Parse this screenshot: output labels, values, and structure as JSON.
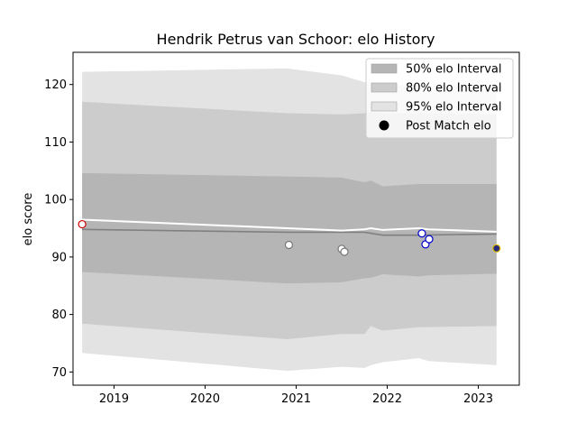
{
  "chart_data": {
    "type": "line",
    "title": "Hendrik Petrus van Schoor: elo History",
    "xlabel": "",
    "ylabel": "elo score",
    "xlim": [
      2018.55,
      2023.45
    ],
    "ylim": [
      67.7,
      125.6
    ],
    "x_ticks": [
      2019,
      2020,
      2021,
      2022,
      2023
    ],
    "y_ticks": [
      70,
      80,
      90,
      100,
      110,
      120
    ],
    "grid": false,
    "legend_position": "top-right",
    "band_x": [
      2018.65,
      2020.9,
      2021.5,
      2021.75,
      2021.82,
      2021.95,
      2022.35,
      2022.45,
      2023.2
    ],
    "bands": [
      {
        "name": "95% elo Interval",
        "color": "#e3e3e3",
        "upper": [
          122.2,
          122.8,
          121.6,
          120.4,
          120.2,
          120.0,
          119.8,
          119.8,
          119.6
        ],
        "lower": [
          73.3,
          70.2,
          70.9,
          70.7,
          71.2,
          71.7,
          72.4,
          71.9,
          71.2
        ]
      },
      {
        "name": "80% elo Interval",
        "color": "#cccccc",
        "upper": [
          117.0,
          115.0,
          114.8,
          115.0,
          115.2,
          115.0,
          115.0,
          115.0,
          114.8
        ],
        "lower": [
          78.4,
          75.7,
          76.6,
          76.6,
          78.0,
          77.2,
          77.8,
          77.8,
          78.0
        ]
      },
      {
        "name": "50% elo Interval",
        "color": "#b5b5b5",
        "upper": [
          104.6,
          104.0,
          103.8,
          103.0,
          103.3,
          102.3,
          102.7,
          102.7,
          102.7
        ],
        "lower": [
          87.4,
          85.4,
          85.6,
          86.3,
          86.4,
          87.0,
          86.6,
          86.8,
          87.1
        ]
      }
    ],
    "median_line": {
      "color": "#808080",
      "x": [
        2018.65,
        2020.9,
        2021.5,
        2021.75,
        2021.95,
        2022.35,
        2023.2
      ],
      "y": [
        94.8,
        94.3,
        94.3,
        94.3,
        93.8,
        93.8,
        94.0
      ]
    },
    "mean_line": {
      "color": "#ffffff",
      "x": [
        2018.65,
        2020.9,
        2021.5,
        2021.75,
        2021.82,
        2021.95,
        2022.35,
        2022.45,
        2023.2
      ],
      "y": [
        96.5,
        95.0,
        94.6,
        94.8,
        95.0,
        94.7,
        95.0,
        94.8,
        94.4
      ]
    },
    "points": [
      {
        "x": 2018.65,
        "y": 95.7,
        "fill": "#ffffff",
        "edge": "#cc0000"
      },
      {
        "x": 2020.92,
        "y": 92.1,
        "fill": "#ffffff",
        "edge": "#777777"
      },
      {
        "x": 2021.5,
        "y": 91.4,
        "fill": "#ffffff",
        "edge": "#777777"
      },
      {
        "x": 2021.53,
        "y": 90.9,
        "fill": "#ffffff",
        "edge": "#777777"
      },
      {
        "x": 2022.38,
        "y": 94.1,
        "fill": "#ffffff",
        "edge": "#0000cc"
      },
      {
        "x": 2022.42,
        "y": 92.2,
        "fill": "#ffffff",
        "edge": "#0000cc"
      },
      {
        "x": 2022.46,
        "y": 93.1,
        "fill": "#ffffff",
        "edge": "#0000cc"
      },
      {
        "x": 2023.2,
        "y": 91.5,
        "fill": "#2a2a7a",
        "edge": "#e0c000"
      }
    ],
    "legend": [
      {
        "label": "50% elo Interval",
        "type": "patch",
        "color": "#b5b5b5"
      },
      {
        "label": "80% elo Interval",
        "type": "patch",
        "color": "#cccccc"
      },
      {
        "label": "95% elo Interval",
        "type": "patch",
        "color": "#e3e3e3"
      },
      {
        "label": "Post Match elo",
        "type": "marker",
        "color": "#000000"
      }
    ]
  }
}
